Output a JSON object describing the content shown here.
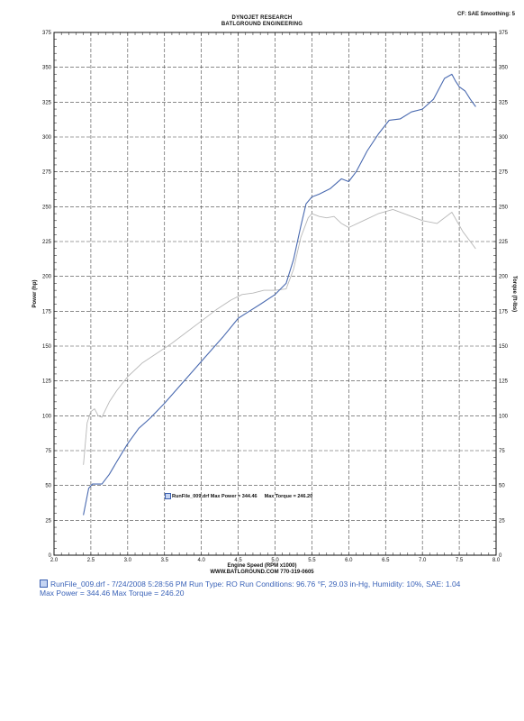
{
  "header": {
    "title": "DYNOJET RESEARCH",
    "subtitle": "BATLGROUND ENGINEERING",
    "cf_info": "CF: SAE  Smoothing: 5"
  },
  "legend": {
    "file": "RunFile_009.drf",
    "max_power": "Max Power = 344.46",
    "max_torque": "Max Torque = 246.20"
  },
  "x_axis": {
    "label": "Engine Speed (RPM x1000)",
    "website": "WWW.BATLGROUND.COM 770-319-0605"
  },
  "footer": {
    "line1": "RunFile_009.drf - 7/24/2008 5:28:56 PM  Run Type: RO  Run Conditions: 96.76 °F, 29.03 in-Hg,  Humidity:  10%, SAE: 1.04",
    "line2": "Max Power = 344.46  Max Torque = 246.20"
  },
  "colors": {
    "power": "#4a6ab0",
    "torque": "#b8b8b8",
    "grid": "#444444",
    "footer_text": "#3b63b8"
  },
  "chart_data": {
    "type": "line",
    "title": "DYNOJET RESEARCH",
    "subtitle": "BATLGROUND ENGINEERING",
    "xlabel": "Engine Speed (RPM x1000)",
    "ylabel": "Power (hp)",
    "y2label": "Torque (ft-lbs)",
    "xlim": [
      2.0,
      8.0
    ],
    "ylim": [
      0,
      375
    ],
    "y2lim": [
      0,
      375
    ],
    "grid": true,
    "x_ticks": [
      "2.0",
      "2.5",
      "3.0",
      "3.5",
      "4.0",
      "4.5",
      "5.0",
      "5.5",
      "6.0",
      "6.5",
      "7.0",
      "7.5",
      "8.0"
    ],
    "y_ticks": [
      "0",
      "25",
      "50",
      "75",
      "100",
      "125",
      "150",
      "175",
      "200",
      "225",
      "250",
      "275",
      "300",
      "325",
      "350",
      "375"
    ],
    "y2_ticks": [
      "0",
      "25",
      "50",
      "75",
      "100",
      "125",
      "150",
      "175",
      "200",
      "225",
      "250",
      "275",
      "300",
      "325",
      "350",
      "375"
    ],
    "series": [
      {
        "name": "Power",
        "x": [
          2.4,
          2.47,
          2.52,
          2.58,
          2.65,
          2.75,
          2.85,
          3.0,
          3.15,
          3.3,
          3.5,
          3.7,
          3.9,
          4.1,
          4.3,
          4.5,
          4.65,
          4.8,
          5.0,
          5.15,
          5.25,
          5.35,
          5.42,
          5.5,
          5.6,
          5.75,
          5.9,
          6.0,
          6.1,
          6.25,
          6.4,
          6.55,
          6.7,
          6.85,
          7.0,
          7.15,
          7.3,
          7.4,
          7.45,
          7.5,
          7.58,
          7.65,
          7.72
        ],
        "y": [
          29,
          48,
          51,
          51,
          51,
          58,
          67,
          80,
          91,
          98,
          109,
          121,
          133,
          145,
          157,
          170,
          175,
          180,
          187,
          195,
          212,
          236,
          252,
          257,
          259,
          263,
          270,
          268,
          275,
          290,
          302,
          312,
          313,
          318,
          320,
          327,
          342,
          345,
          340,
          336,
          333,
          327,
          322
        ]
      },
      {
        "name": "Torque",
        "x": [
          2.4,
          2.45,
          2.5,
          2.55,
          2.6,
          2.65,
          2.75,
          2.85,
          3.0,
          3.2,
          3.4,
          3.6,
          3.8,
          4.0,
          4.2,
          4.4,
          4.55,
          4.7,
          4.85,
          5.0,
          5.15,
          5.25,
          5.35,
          5.45,
          5.5,
          5.6,
          5.7,
          5.8,
          5.9,
          6.0,
          6.2,
          6.4,
          6.6,
          6.8,
          7.0,
          7.2,
          7.4,
          7.55,
          7.65,
          7.72
        ],
        "y": [
          65,
          95,
          103,
          105,
          100,
          99,
          110,
          118,
          128,
          138,
          145,
          152,
          160,
          168,
          176,
          183,
          187,
          188,
          190,
          190,
          191,
          205,
          228,
          242,
          245,
          243,
          242,
          243,
          238,
          235,
          240,
          245,
          248,
          244,
          240,
          238,
          246,
          232,
          225,
          220
        ]
      }
    ]
  }
}
